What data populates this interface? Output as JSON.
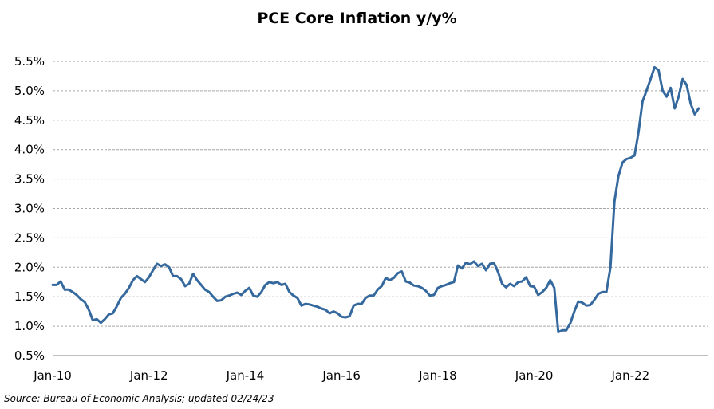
{
  "chart_data": {
    "type": "line",
    "title": "PCE Core Inflation y/y%",
    "xlabel": "",
    "ylabel": "",
    "ylim": [
      0.5,
      5.5
    ],
    "yticks": [
      0.5,
      1.0,
      1.5,
      2.0,
      2.5,
      3.0,
      3.5,
      4.0,
      4.5,
      5.0,
      5.5
    ],
    "ytick_labels": [
      "0.5%",
      "1.0%",
      "1.5%",
      "2.0%",
      "2.5%",
      "3.0%",
      "3.5%",
      "4.0%",
      "4.5%",
      "5.0%",
      "5.5%"
    ],
    "xticks": [
      "Jan-10",
      "Jan-12",
      "Jan-14",
      "Jan-16",
      "Jan-18",
      "Jan-20",
      "Jan-22"
    ],
    "xtick_index": [
      0,
      24,
      48,
      72,
      96,
      120,
      144
    ],
    "grid": "horizontal dashed",
    "line_color": "#35699E",
    "series": [
      {
        "values": [
          1.7,
          1.7,
          1.76,
          1.62,
          1.62,
          1.58,
          1.53,
          1.46,
          1.41,
          1.28,
          1.1,
          1.12,
          1.06,
          1.12,
          1.2,
          1.22,
          1.34,
          1.48,
          1.55,
          1.65,
          1.78,
          1.85,
          1.8,
          1.75,
          1.83,
          1.95,
          2.06,
          2.02,
          2.05,
          2.0,
          1.85,
          1.85,
          1.8,
          1.68,
          1.72,
          1.89,
          1.78,
          1.7,
          1.62,
          1.58,
          1.5,
          1.43,
          1.44,
          1.5,
          1.52,
          1.55,
          1.57,
          1.53,
          1.6,
          1.65,
          1.52,
          1.5,
          1.58,
          1.7,
          1.75,
          1.73,
          1.75,
          1.7,
          1.72,
          1.58,
          1.52,
          1.48,
          1.35,
          1.38,
          1.37,
          1.35,
          1.33,
          1.3,
          1.28,
          1.22,
          1.25,
          1.22,
          1.16,
          1.15,
          1.17,
          1.35,
          1.38,
          1.38,
          1.48,
          1.52,
          1.52,
          1.62,
          1.68,
          1.82,
          1.78,
          1.82,
          1.9,
          1.93,
          1.76,
          1.74,
          1.69,
          1.68,
          1.65,
          1.6,
          1.52,
          1.53,
          1.65,
          1.68,
          1.7,
          1.73,
          1.75,
          2.03,
          1.98,
          2.08,
          2.05,
          2.1,
          2.02,
          2.06,
          1.95,
          2.06,
          2.07,
          1.92,
          1.72,
          1.66,
          1.72,
          1.68,
          1.75,
          1.76,
          1.83,
          1.68,
          1.67,
          1.53,
          1.58,
          1.65,
          1.78,
          1.65,
          0.9,
          0.93,
          0.93,
          1.05,
          1.25,
          1.42,
          1.4,
          1.35,
          1.36,
          1.45,
          1.55,
          1.58,
          1.58,
          2.0,
          3.12,
          3.55,
          3.78,
          3.84,
          3.86,
          3.9,
          4.3,
          4.82,
          5.0,
          5.2,
          5.4,
          5.35,
          5.0,
          4.9,
          5.05,
          4.7,
          4.9,
          5.2,
          5.1,
          4.78,
          4.6,
          4.7
        ]
      }
    ]
  },
  "source_text": "Source: Bureau of Economic Analysis; updated 02/24/23"
}
